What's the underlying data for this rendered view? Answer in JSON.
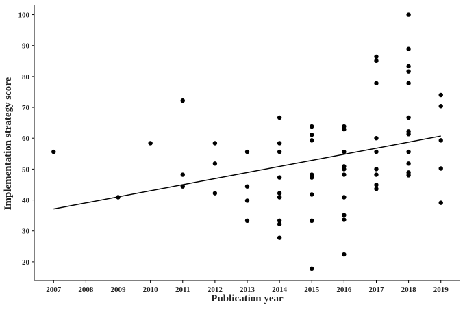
{
  "chart_data": {
    "type": "scatter",
    "x_label": "Publication year",
    "y_label": "Implementation strategy score",
    "x": [
      2007,
      2009,
      2010,
      2011,
      2011,
      2011,
      2012,
      2012,
      2012,
      2013,
      2013,
      2013,
      2013,
      2014,
      2014,
      2014,
      2014,
      2014,
      2014,
      2014,
      2014,
      2014,
      2015,
      2015,
      2015,
      2015,
      2015,
      2015,
      2015,
      2015,
      2016,
      2016,
      2016,
      2016,
      2016,
      2016,
      2016,
      2016,
      2016,
      2016,
      2017,
      2017,
      2017,
      2017,
      2017,
      2017,
      2017,
      2017,
      2017,
      2018,
      2018,
      2018,
      2018,
      2018,
      2018,
      2018,
      2018,
      2018,
      2018,
      2018,
      2018,
      2019,
      2019,
      2019,
      2019,
      2019
    ],
    "values": [
      55.6,
      40.9,
      58.4,
      72.2,
      48.2,
      44.4,
      58.4,
      51.8,
      42.2,
      55.6,
      44.4,
      39.8,
      33.3,
      66.7,
      58.4,
      55.6,
      47.3,
      42.2,
      40.9,
      33.3,
      32.2,
      27.8,
      63.8,
      61.1,
      59.3,
      48.2,
      47.3,
      41.8,
      33.3,
      17.8,
      63.8,
      62.9,
      55.6,
      50.9,
      50,
      48.2,
      40.9,
      35.1,
      33.6,
      22.4,
      86.4,
      85.1,
      77.8,
      60,
      55.6,
      50,
      48.2,
      44.9,
      43.6,
      100,
      88.9,
      83.3,
      81.6,
      77.8,
      66.7,
      62.2,
      61.3,
      55.6,
      51.8,
      48.9,
      48,
      74,
      70.4,
      59.3,
      50.2,
      39.1
    ],
    "color": "#000000",
    "trend_line": {
      "x": [
        2007,
        2019
      ],
      "values": [
        37.1,
        60.7
      ],
      "color": "#000000"
    },
    "xlim": [
      2006.4,
      2019.6
    ],
    "xticks": [
      2007,
      2008,
      2009,
      2010,
      2011,
      2012,
      2013,
      2014,
      2015,
      2016,
      2017,
      2018,
      2019
    ],
    "ylim": [
      14,
      103
    ],
    "yticks": [
      20,
      30,
      40,
      50,
      60,
      70,
      80,
      90,
      100
    ]
  }
}
